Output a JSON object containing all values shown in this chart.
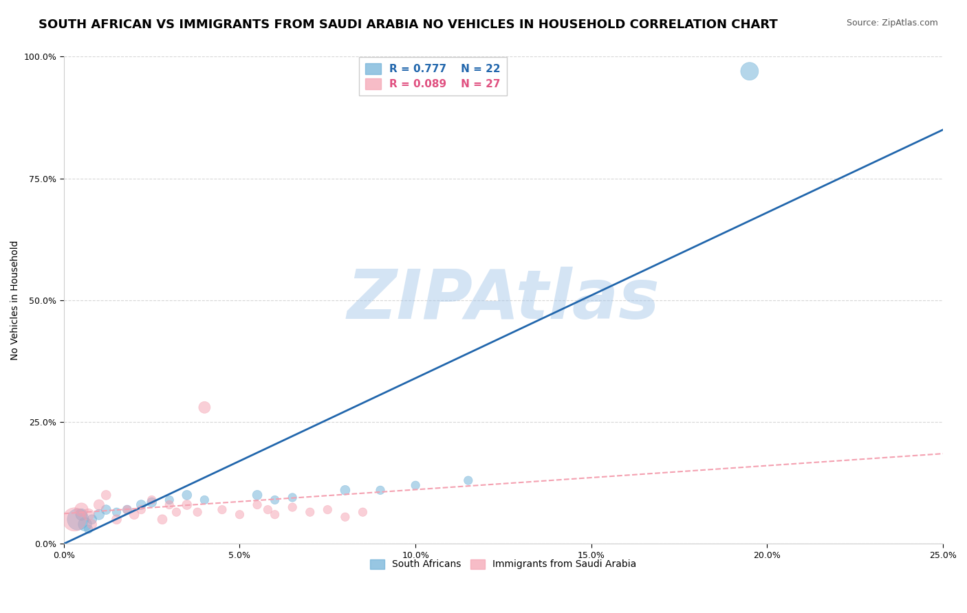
{
  "title": "SOUTH AFRICAN VS IMMIGRANTS FROM SAUDI ARABIA NO VEHICLES IN HOUSEHOLD CORRELATION CHART",
  "source": "Source: ZipAtlas.com",
  "xlabel": "",
  "ylabel": "No Vehicles in Household",
  "xlim": [
    0.0,
    0.25
  ],
  "ylim": [
    0.0,
    1.0
  ],
  "xticks": [
    0.0,
    0.05,
    0.1,
    0.15,
    0.2,
    0.25
  ],
  "yticks": [
    0.0,
    0.25,
    0.5,
    0.75,
    1.0
  ],
  "xticklabels": [
    "0.0%",
    "5.0%",
    "10.0%",
    "15.0%",
    "20.0%",
    "25.0%"
  ],
  "yticklabels": [
    "0.0%",
    "25.0%",
    "50.0%",
    "75.0%",
    "100.0%"
  ],
  "blue_color": "#6baed6",
  "pink_color": "#f4a0b0",
  "blue_line_color": "#2166ac",
  "pink_line_color": "#f4a0b0",
  "blue_text_color": "#2166ac",
  "pink_text_color": "#e05080",
  "background_color": "#ffffff",
  "grid_color": "#cccccc",
  "watermark_text": "ZIPAtlas",
  "watermark_color": "#a0c4e8",
  "title_fontsize": 13,
  "axis_label_fontsize": 10,
  "tick_fontsize": 9,
  "south_africans_x": [
    0.004,
    0.006,
    0.005,
    0.007,
    0.008,
    0.01,
    0.012,
    0.015,
    0.018,
    0.022,
    0.025,
    0.03,
    0.035,
    0.04,
    0.055,
    0.06,
    0.065,
    0.08,
    0.09,
    0.1,
    0.115,
    0.195
  ],
  "south_africans_y": [
    0.05,
    0.04,
    0.06,
    0.03,
    0.05,
    0.06,
    0.07,
    0.065,
    0.07,
    0.08,
    0.085,
    0.09,
    0.1,
    0.09,
    0.1,
    0.09,
    0.095,
    0.11,
    0.11,
    0.12,
    0.13,
    0.97
  ],
  "south_africans_size": [
    500,
    200,
    150,
    80,
    100,
    120,
    100,
    80,
    90,
    100,
    100,
    80,
    100,
    80,
    100,
    80,
    80,
    100,
    80,
    80,
    80,
    350
  ],
  "immigrants_x": [
    0.003,
    0.005,
    0.007,
    0.008,
    0.01,
    0.012,
    0.015,
    0.018,
    0.02,
    0.022,
    0.025,
    0.028,
    0.03,
    0.032,
    0.035,
    0.038,
    0.04,
    0.045,
    0.05,
    0.055,
    0.058,
    0.06,
    0.065,
    0.07,
    0.075,
    0.08,
    0.085
  ],
  "immigrants_y": [
    0.05,
    0.07,
    0.06,
    0.04,
    0.08,
    0.1,
    0.05,
    0.07,
    0.06,
    0.07,
    0.09,
    0.05,
    0.08,
    0.065,
    0.08,
    0.065,
    0.28,
    0.07,
    0.06,
    0.08,
    0.07,
    0.06,
    0.075,
    0.065,
    0.07,
    0.055,
    0.065
  ],
  "immigrants_size": [
    600,
    200,
    150,
    100,
    120,
    100,
    100,
    80,
    100,
    80,
    80,
    100,
    80,
    80,
    100,
    80,
    150,
    80,
    80,
    80,
    80,
    80,
    80,
    80,
    80,
    80,
    80
  ],
  "blue_line_x": [
    0.0,
    0.25
  ],
  "blue_line_y": [
    0.0,
    0.85
  ],
  "pink_line_x": [
    0.0,
    0.25
  ],
  "pink_line_y": [
    0.062,
    0.185
  ]
}
